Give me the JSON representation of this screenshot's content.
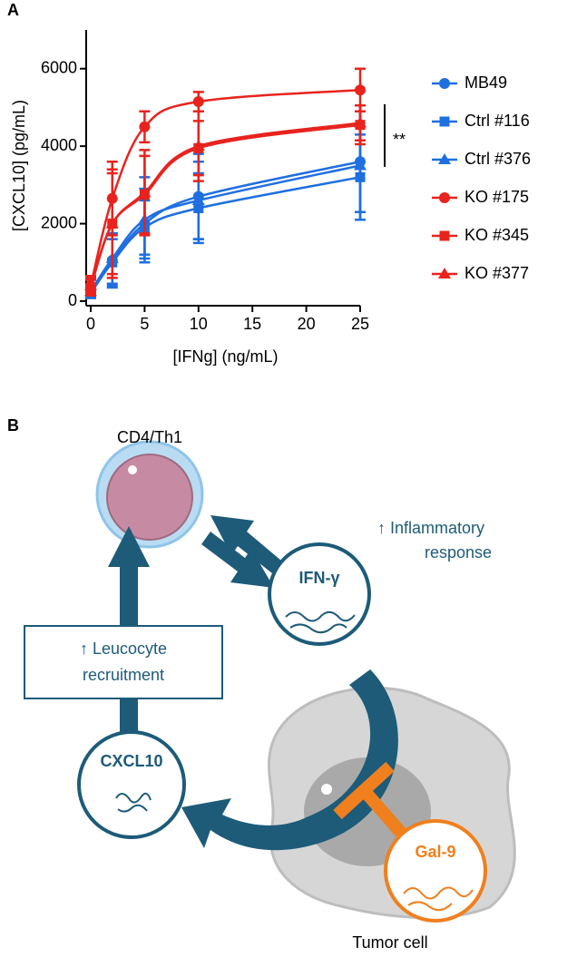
{
  "chart_data": {
    "type": "line",
    "panel": "A",
    "xlabel": "[IFNg] (ng/mL)",
    "ylabel": "[CXCL10] (pg/mL)",
    "x": [
      0,
      2,
      5,
      10,
      25
    ],
    "xlim": [
      0,
      25
    ],
    "xticks": [
      0,
      5,
      10,
      15,
      20,
      25
    ],
    "ylim": [
      0,
      7000
    ],
    "yticks": [
      0,
      2000,
      4000,
      6000
    ],
    "annotation": "**",
    "legend": "right",
    "series": [
      {
        "name": "MB49",
        "color": "#1f6fe0",
        "marker": "circle",
        "values": [
          250,
          1050,
          2000,
          2700,
          3600
        ],
        "errors": [
          150,
          700,
          900,
          1100,
          1300
        ]
      },
      {
        "name": "Ctrl #116",
        "color": "#1f6fe0",
        "marker": "square",
        "values": [
          200,
          1000,
          1900,
          2400,
          3200
        ],
        "errors": [
          120,
          600,
          700,
          900,
          1100
        ]
      },
      {
        "name": "Ctrl #376",
        "color": "#1f6fe0",
        "marker": "triangle",
        "values": [
          250,
          1100,
          2100,
          2600,
          3500
        ],
        "errors": [
          150,
          650,
          1100,
          1000,
          1400
        ]
      },
      {
        "name": "KO #175",
        "color": "#e8231e",
        "marker": "circle",
        "values": [
          400,
          2650,
          4500,
          5150,
          5450
        ],
        "errors": [
          200,
          950,
          400,
          250,
          550
        ]
      },
      {
        "name": "KO #345",
        "color": "#e8231e",
        "marker": "square",
        "values": [
          350,
          2000,
          2750,
          3950,
          4550
        ],
        "errors": [
          200,
          1400,
          1000,
          700,
          500
        ]
      },
      {
        "name": "KO #377",
        "color": "#e8231e",
        "marker": "triangle",
        "values": [
          400,
          2000,
          2800,
          4000,
          4600
        ],
        "errors": [
          250,
          1300,
          1100,
          900,
          450
        ]
      }
    ]
  },
  "diagram": {
    "panel": "B",
    "cell": "CD4/Th1",
    "inflammatory": [
      "↑ Inflammatory",
      "response"
    ],
    "ifn": "IFN-γ",
    "recruitment": [
      "↑ Leucocyte",
      "recruitment"
    ],
    "cxcl10": "CXCL10",
    "gal9": "Gal-9",
    "tumor": "Tumor cell"
  }
}
